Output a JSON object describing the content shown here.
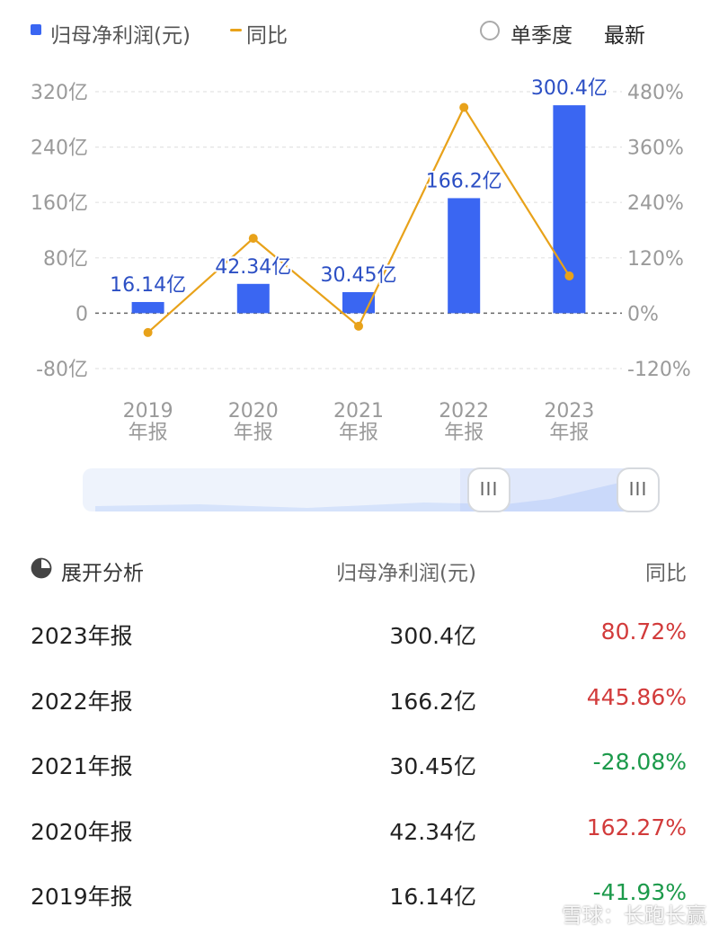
{
  "legend": {
    "bar_label": "归母净利润(元)",
    "line_label": "同比",
    "bar_color": "#3a66f2",
    "line_color": "#e8a21a"
  },
  "controls": {
    "quarter_toggle": "单季度",
    "latest": "最新"
  },
  "chart_data": {
    "type": "bar",
    "categories": [
      "2019\n年报",
      "2020\n年报",
      "2021\n年报",
      "2022\n年报",
      "2023\n年报"
    ],
    "series": [
      {
        "name": "归母净利润(元)",
        "type": "bar",
        "values": [
          16.14,
          42.34,
          30.45,
          166.2,
          300.4
        ],
        "labels": [
          "16.14亿",
          "42.34亿",
          "30.45亿",
          "166.2亿",
          "300.4亿"
        ],
        "axis": "left"
      },
      {
        "name": "同比",
        "type": "line",
        "values": [
          -41.93,
          162.27,
          -28.08,
          445.86,
          80.72
        ],
        "axis": "right"
      }
    ],
    "y_left": {
      "ticks": [
        320,
        240,
        160,
        80,
        0,
        -80
      ],
      "tick_labels": [
        "320亿",
        "240亿",
        "160亿",
        "80亿",
        "0",
        "-80亿"
      ],
      "range": [
        -80,
        320
      ]
    },
    "y_right": {
      "ticks": [
        480,
        360,
        240,
        120,
        0,
        -120
      ],
      "tick_labels": [
        "480%",
        "360%",
        "240%",
        "120%",
        "0%",
        "-120%"
      ],
      "range": [
        -120,
        480
      ]
    },
    "grid": true
  },
  "slider": {
    "handle_glyph": "III"
  },
  "table": {
    "header": {
      "expand": "展开分析",
      "col1": "归母净利润(元)",
      "col2": "同比"
    },
    "rows": [
      {
        "period": "2023年报",
        "value": "300.4亿",
        "yoy": "80.72%",
        "trend": "up"
      },
      {
        "period": "2022年报",
        "value": "166.2亿",
        "yoy": "445.86%",
        "trend": "up"
      },
      {
        "period": "2021年报",
        "value": "30.45亿",
        "yoy": "-28.08%",
        "trend": "down"
      },
      {
        "period": "2020年报",
        "value": "42.34亿",
        "yoy": "162.27%",
        "trend": "up"
      },
      {
        "period": "2019年报",
        "value": "16.14亿",
        "yoy": "-41.93%",
        "trend": "down"
      }
    ],
    "up_color": "#d23b3b",
    "down_color": "#1c9a4b"
  },
  "watermark": "雪球：长跑长赢"
}
